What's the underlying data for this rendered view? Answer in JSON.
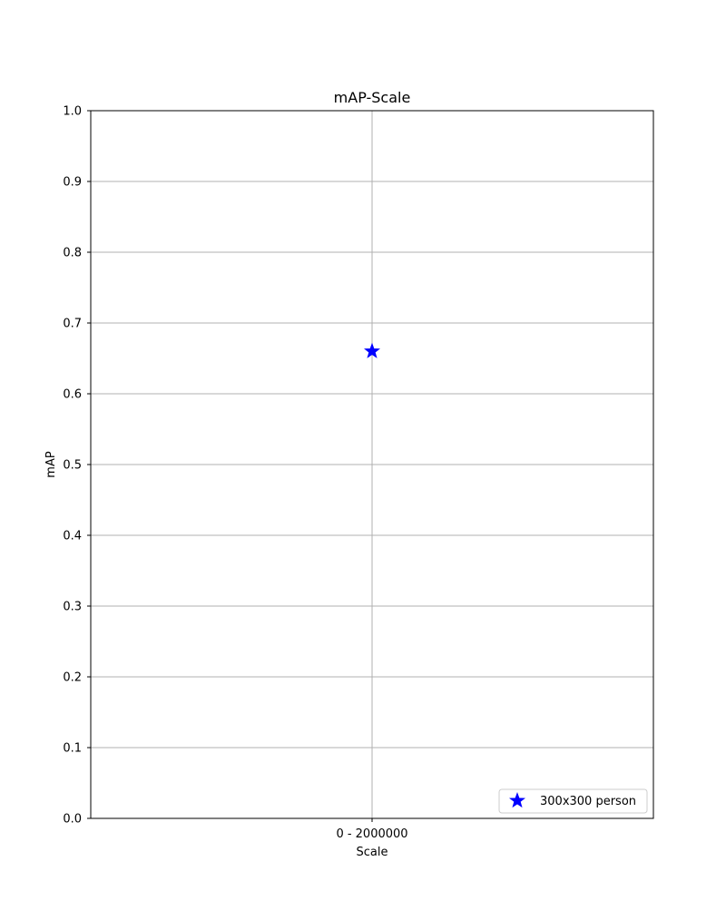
{
  "chart_data": {
    "type": "scatter",
    "title": "mAP-Scale",
    "xlabel": "Scale",
    "ylabel": "mAP",
    "categories": [
      "0 - 2000000"
    ],
    "ylim": [
      0,
      1.0
    ],
    "yticks": [
      "0.0",
      "0.1",
      "0.2",
      "0.3",
      "0.4",
      "0.5",
      "0.6",
      "0.7",
      "0.8",
      "0.9",
      "1.0"
    ],
    "grid": true,
    "legend_position": "lower-right",
    "series": [
      {
        "name": "300x300 person",
        "marker": "star",
        "color": "#0000ff",
        "points": [
          {
            "x": "0 - 2000000",
            "y": 0.66
          }
        ]
      }
    ]
  }
}
